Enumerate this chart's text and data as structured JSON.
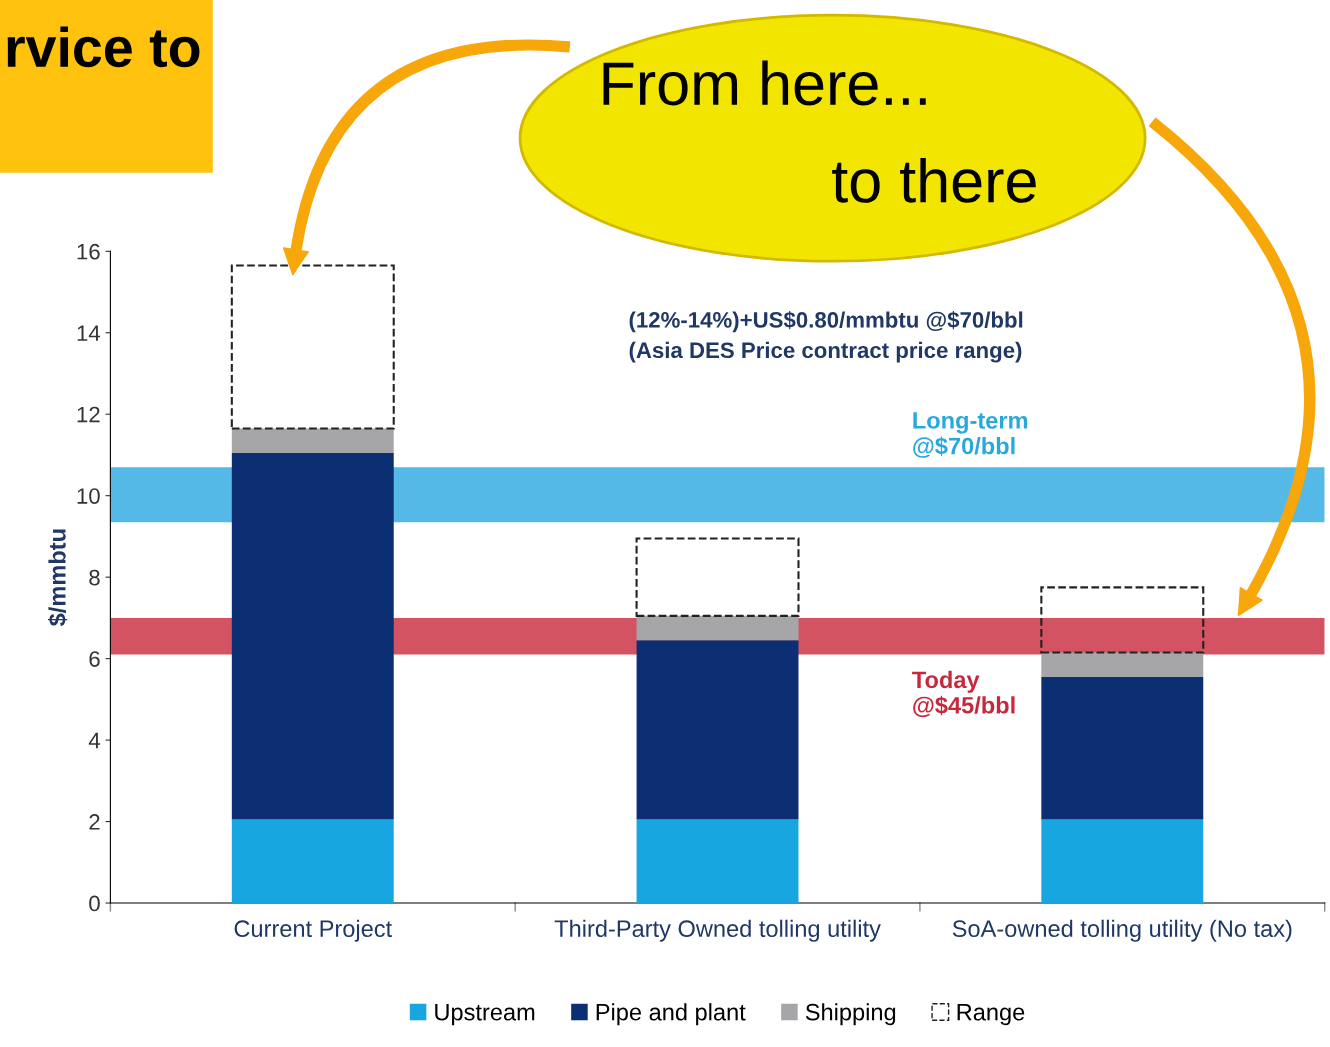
{
  "chart_data": {
    "type": "bar",
    "stacked": true,
    "ylabel": "$/mmbtu",
    "categories": [
      "Current Project",
      "Third-Party Owned tolling utility",
      "SoA-owned tolling utility (No tax)"
    ],
    "series": [
      {
        "name": "Upstream",
        "color": "#17a6e0",
        "values": [
          2.05,
          2.05,
          2.05
        ]
      },
      {
        "name": "Pipe and plant",
        "color": "#0c2f74",
        "values": [
          9.0,
          4.4,
          3.5
        ]
      },
      {
        "name": "Shipping",
        "color": "#a6a6a8",
        "values": [
          0.6,
          0.6,
          0.6
        ]
      },
      {
        "name": "Range",
        "color": "#222222",
        "line_style": "dashed",
        "values": [
          4.0,
          1.9,
          1.6
        ]
      }
    ],
    "ylim": [
      0,
      16
    ],
    "yticks": [
      0,
      2,
      4,
      6,
      8,
      10,
      12,
      14,
      16
    ],
    "grid": false,
    "legend": "bottom",
    "bands": [
      {
        "axis": "y",
        "from": 9.35,
        "to": 10.7,
        "label": "Long-term\n@$70/bbl",
        "color": "#29a8e0"
      },
      {
        "axis": "y",
        "from": 6.1,
        "to": 7.0,
        "label": "Today\n@$45/bbl",
        "color": "#c8283c"
      }
    ],
    "annotations": [
      "rvice to",
      "From here...",
      "to there",
      "(12%-14%)+US$0.80/mmbtu @$70/bbl\n(Asia DES Price contract price range)"
    ]
  }
}
